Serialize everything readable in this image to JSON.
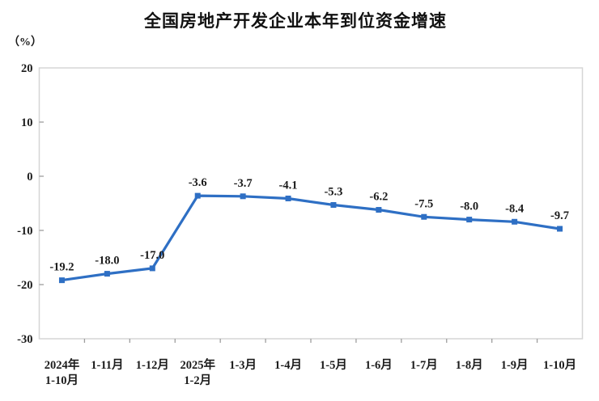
{
  "chart_data": {
    "type": "line",
    "title": "全国房地产开发企业本年到位资金增速",
    "unit_label": "（%）",
    "categories": [
      [
        "2024年",
        "1-10月"
      ],
      [
        "1-11月"
      ],
      [
        "1-12月"
      ],
      [
        "2025年",
        "1-2月"
      ],
      [
        "1-3月"
      ],
      [
        "1-4月"
      ],
      [
        "1-5月"
      ],
      [
        "1-6月"
      ],
      [
        "1-7月"
      ],
      [
        "1-8月"
      ],
      [
        "1-9月"
      ],
      [
        "1-10月"
      ]
    ],
    "series": [
      {
        "values": [
          -19.2,
          -18.0,
          -17.0,
          -3.6,
          -3.7,
          -4.1,
          -5.3,
          -6.2,
          -7.5,
          -8.0,
          -8.4,
          -9.7
        ],
        "labels": [
          "-19.2",
          "-18.0",
          "-17.0",
          "-3.6",
          "-3.7",
          "-4.1",
          "-5.3",
          "-6.2",
          "-7.5",
          "-8.0",
          "-8.4",
          "-9.7"
        ],
        "color": "#2E6FC4",
        "marker": "square"
      }
    ],
    "ylim": [
      -30,
      20
    ],
    "yticks": [
      20,
      10,
      0,
      -10,
      -20,
      -30
    ],
    "grid": false,
    "legend": "none",
    "axis_text_color": "#1b1b1b",
    "border_color": "#d6d6d6",
    "tick_color": "#9e9e9e"
  }
}
